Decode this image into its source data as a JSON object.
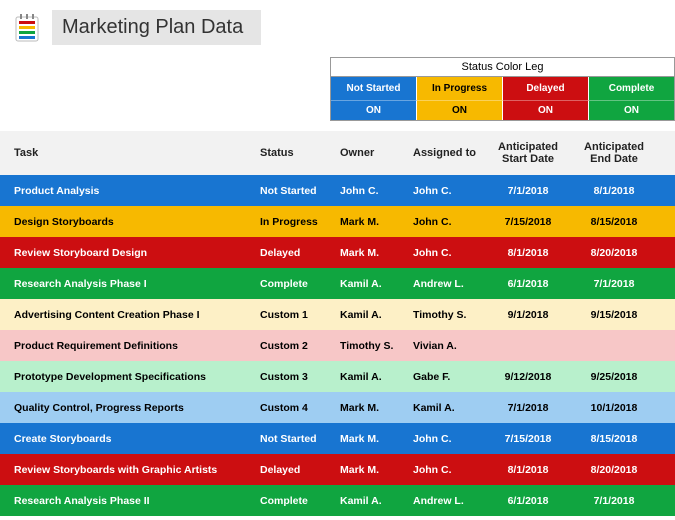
{
  "title": "Marketing Plan Data",
  "legend": {
    "title": "Status Color Leg",
    "items": [
      {
        "label": "Not Started",
        "toggle": "ON",
        "bg": "#1875d1",
        "fg": "#ffffff"
      },
      {
        "label": "In Progress",
        "toggle": "ON",
        "bg": "#f7b900",
        "fg": "#000000"
      },
      {
        "label": "Delayed",
        "toggle": "ON",
        "bg": "#cc0e11",
        "fg": "#ffffff"
      },
      {
        "label": "Complete",
        "toggle": "ON",
        "bg": "#10a540",
        "fg": "#ffffff"
      }
    ]
  },
  "columns": {
    "task": "Task",
    "status": "Status",
    "owner": "Owner",
    "assigned": "Assigned to",
    "start": "Anticipated Start Date",
    "end": "Anticipated End Date"
  },
  "status_style": {
    "Not Started": {
      "bg": "#1875d1",
      "fg": "#ffffff",
      "tail": "#1875d1"
    },
    "In Progress": {
      "bg": "#f7b900",
      "fg": "#000000",
      "tail": "#f7b900"
    },
    "Delayed": {
      "bg": "#cc0e11",
      "fg": "#ffffff",
      "tail": "#cc0e11"
    },
    "Complete": {
      "bg": "#10a540",
      "fg": "#ffffff",
      "tail": "#10a540"
    },
    "Custom 1": {
      "bg": "#fdf0c6",
      "fg": "#000000",
      "tail": "#fdf0c6"
    },
    "Custom 2": {
      "bg": "#f7c7c7",
      "fg": "#000000",
      "tail": "#f7c7c7"
    },
    "Custom 3": {
      "bg": "#b8f0cc",
      "fg": "#000000",
      "tail": "#b8f0cc"
    },
    "Custom 4": {
      "bg": "#9ecdf2",
      "fg": "#000000",
      "tail": "#9ecdf2"
    }
  },
  "rows": [
    {
      "task": "Product Analysis",
      "status": "Not Started",
      "owner": "John C.",
      "assigned": "John C.",
      "start": "7/1/2018",
      "end": "8/1/2018"
    },
    {
      "task": "Design Storyboards",
      "status": "In Progress",
      "owner": "Mark M.",
      "assigned": "John C.",
      "start": "7/15/2018",
      "end": "8/15/2018"
    },
    {
      "task": "Review Storyboard Design",
      "status": "Delayed",
      "owner": "Mark M.",
      "assigned": "John C.",
      "start": "8/1/2018",
      "end": "8/20/2018"
    },
    {
      "task": "Research Analysis Phase I",
      "status": "Complete",
      "owner": "Kamil A.",
      "assigned": "Andrew L.",
      "start": "6/1/2018",
      "end": "7/1/2018"
    },
    {
      "task": "Advertising Content Creation Phase I",
      "status": "Custom 1",
      "owner": "Kamil A.",
      "assigned": "Timothy S.",
      "start": "9/1/2018",
      "end": "9/15/2018"
    },
    {
      "task": "Product Requirement Definitions",
      "status": "Custom 2",
      "owner": "Timothy S.",
      "assigned": "Vivian A.",
      "start": "",
      "end": ""
    },
    {
      "task": "Prototype Development Specifications",
      "status": "Custom 3",
      "owner": "Kamil A.",
      "assigned": "Gabe F.",
      "start": "9/12/2018",
      "end": "9/25/2018"
    },
    {
      "task": "Quality Control, Progress Reports",
      "status": "Custom 4",
      "owner": "Mark M.",
      "assigned": "Kamil A.",
      "start": "7/1/2018",
      "end": "10/1/2018"
    },
    {
      "task": "Create Storyboards",
      "status": "Not Started",
      "owner": "Mark M.",
      "assigned": "John C.",
      "start": "7/15/2018",
      "end": "8/15/2018"
    },
    {
      "task": "Review Storyboards with Graphic Artists",
      "status": "Delayed",
      "owner": "Mark M.",
      "assigned": "John C.",
      "start": "8/1/2018",
      "end": "8/20/2018"
    },
    {
      "task": "Research Analysis Phase II",
      "status": "Complete",
      "owner": "Kamil A.",
      "assigned": "Andrew L.",
      "start": "6/1/2018",
      "end": "7/1/2018"
    }
  ],
  "logo_colors": [
    "#cc0e11",
    "#f7b900",
    "#10a540",
    "#1875d1"
  ]
}
